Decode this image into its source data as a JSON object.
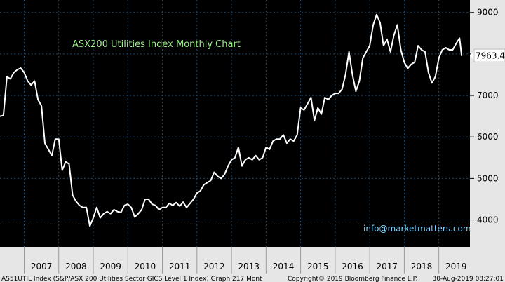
{
  "chart_data": {
    "type": "line",
    "title": "ASX200 Utilities Index Monthly Chart",
    "annotation": "info@marketmatters.com.au",
    "last_value_label": "7963.4",
    "ylim": [
      3350,
      9300
    ],
    "yticks": [
      4000,
      5000,
      6000,
      7000,
      8000,
      9000
    ],
    "xlim": [
      2006.3,
      2019.9
    ],
    "year_labels": [
      "2007",
      "2008",
      "2009",
      "2010",
      "2011",
      "2012",
      "2013",
      "2014",
      "2015",
      "2016",
      "2017",
      "2018",
      "2019"
    ],
    "grid": true,
    "footer_left": "AS51UTIL Index (S&P/ASX 200 Utilities Sector GICS Level 1 Index) Graph 217  Mont",
    "footer_right": "Copyright© 2019 Bloomberg Finance L.P.",
    "footer_date": "30-Aug-2019 08:27:01",
    "colors": {
      "background": "#000000",
      "line": "#ffffff",
      "axis_panel": "#e6e6e6",
      "grid": "#1f4a6e",
      "title": "#9ef08a",
      "email": "#7fd4ff"
    },
    "series": [
      {
        "values": [
          [
            2006.3,
            6500
          ],
          [
            2006.4,
            6520
          ],
          [
            2006.5,
            7450
          ],
          [
            2006.6,
            7400
          ],
          [
            2006.7,
            7550
          ],
          [
            2006.8,
            7620
          ],
          [
            2006.9,
            7660
          ],
          [
            2007.0,
            7550
          ],
          [
            2007.1,
            7350
          ],
          [
            2007.2,
            7250
          ],
          [
            2007.3,
            7350
          ],
          [
            2007.4,
            6900
          ],
          [
            2007.5,
            6750
          ],
          [
            2007.6,
            5850
          ],
          [
            2007.7,
            5700
          ],
          [
            2007.8,
            5550
          ],
          [
            2007.9,
            5950
          ],
          [
            2008.0,
            5950
          ],
          [
            2008.1,
            5200
          ],
          [
            2008.2,
            5400
          ],
          [
            2008.3,
            5350
          ],
          [
            2008.4,
            4600
          ],
          [
            2008.5,
            4450
          ],
          [
            2008.6,
            4350
          ],
          [
            2008.7,
            4300
          ],
          [
            2008.8,
            4300
          ],
          [
            2008.9,
            3850
          ],
          [
            2009.0,
            4050
          ],
          [
            2009.1,
            4300
          ],
          [
            2009.2,
            4050
          ],
          [
            2009.3,
            4150
          ],
          [
            2009.4,
            4200
          ],
          [
            2009.5,
            4150
          ],
          [
            2009.6,
            4250
          ],
          [
            2009.7,
            4200
          ],
          [
            2009.8,
            4180
          ],
          [
            2009.9,
            4350
          ],
          [
            2010.0,
            4380
          ],
          [
            2010.1,
            4300
          ],
          [
            2010.2,
            4070
          ],
          [
            2010.3,
            4150
          ],
          [
            2010.4,
            4250
          ],
          [
            2010.5,
            4500
          ],
          [
            2010.6,
            4500
          ],
          [
            2010.7,
            4380
          ],
          [
            2010.8,
            4350
          ],
          [
            2010.9,
            4250
          ],
          [
            2011.0,
            4300
          ],
          [
            2011.1,
            4300
          ],
          [
            2011.2,
            4400
          ],
          [
            2011.3,
            4350
          ],
          [
            2011.4,
            4420
          ],
          [
            2011.5,
            4330
          ],
          [
            2011.6,
            4430
          ],
          [
            2011.7,
            4300
          ],
          [
            2011.8,
            4400
          ],
          [
            2011.9,
            4500
          ],
          [
            2012.0,
            4650
          ],
          [
            2012.1,
            4700
          ],
          [
            2012.2,
            4850
          ],
          [
            2012.3,
            4900
          ],
          [
            2012.4,
            4950
          ],
          [
            2012.5,
            5150
          ],
          [
            2012.6,
            5050
          ],
          [
            2012.7,
            5000
          ],
          [
            2012.8,
            5100
          ],
          [
            2012.9,
            5300
          ],
          [
            2013.0,
            5450
          ],
          [
            2013.1,
            5500
          ],
          [
            2013.2,
            5750
          ],
          [
            2013.3,
            5300
          ],
          [
            2013.4,
            5450
          ],
          [
            2013.5,
            5500
          ],
          [
            2013.6,
            5450
          ],
          [
            2013.7,
            5550
          ],
          [
            2013.8,
            5450
          ],
          [
            2013.9,
            5500
          ],
          [
            2014.0,
            5750
          ],
          [
            2014.1,
            5700
          ],
          [
            2014.2,
            5900
          ],
          [
            2014.3,
            5950
          ],
          [
            2014.4,
            5950
          ],
          [
            2014.5,
            6050
          ],
          [
            2014.6,
            5850
          ],
          [
            2014.7,
            5950
          ],
          [
            2014.8,
            5900
          ],
          [
            2014.9,
            6050
          ],
          [
            2015.0,
            6700
          ],
          [
            2015.1,
            6650
          ],
          [
            2015.2,
            6800
          ],
          [
            2015.3,
            6950
          ],
          [
            2015.4,
            6400
          ],
          [
            2015.5,
            6700
          ],
          [
            2015.6,
            6550
          ],
          [
            2015.7,
            6950
          ],
          [
            2015.8,
            6900
          ],
          [
            2015.9,
            7000
          ],
          [
            2016.0,
            7050
          ],
          [
            2016.1,
            7050
          ],
          [
            2016.2,
            7150
          ],
          [
            2016.3,
            7500
          ],
          [
            2016.4,
            8050
          ],
          [
            2016.5,
            7500
          ],
          [
            2016.6,
            7100
          ],
          [
            2016.7,
            7350
          ],
          [
            2016.8,
            7900
          ],
          [
            2016.9,
            8050
          ],
          [
            2017.0,
            8200
          ],
          [
            2017.1,
            8700
          ],
          [
            2017.2,
            8950
          ],
          [
            2017.3,
            8750
          ],
          [
            2017.4,
            8200
          ],
          [
            2017.5,
            8350
          ],
          [
            2017.6,
            8050
          ],
          [
            2017.7,
            8450
          ],
          [
            2017.8,
            8700
          ],
          [
            2017.9,
            8100
          ],
          [
            2018.0,
            7800
          ],
          [
            2018.1,
            7650
          ],
          [
            2018.2,
            7750
          ],
          [
            2018.3,
            7800
          ],
          [
            2018.4,
            8200
          ],
          [
            2018.5,
            8100
          ],
          [
            2018.6,
            8050
          ],
          [
            2018.7,
            7550
          ],
          [
            2018.8,
            7300
          ],
          [
            2018.9,
            7450
          ],
          [
            2019.0,
            7900
          ],
          [
            2019.1,
            8100
          ],
          [
            2019.2,
            8150
          ],
          [
            2019.3,
            8100
          ],
          [
            2019.4,
            8100
          ],
          [
            2019.5,
            8250
          ],
          [
            2019.6,
            8380
          ],
          [
            2019.66,
            7963.4
          ]
        ]
      }
    ]
  }
}
